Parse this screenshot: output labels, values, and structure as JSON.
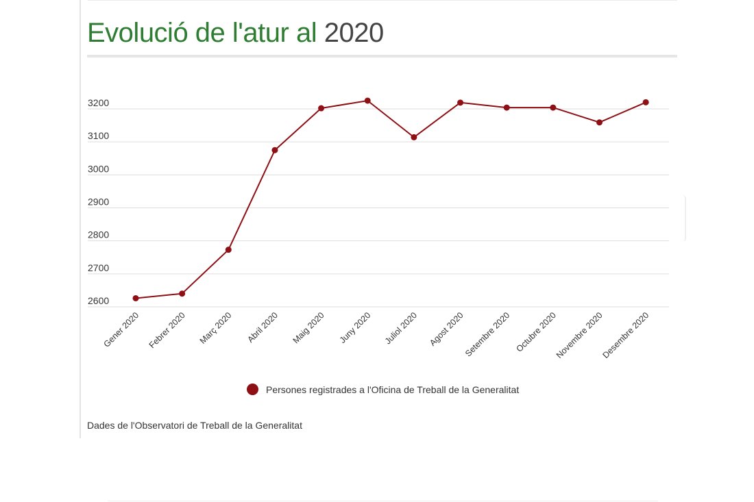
{
  "title": {
    "main": "Evolució de l'atur al",
    "year": "2020"
  },
  "source_note": "Dades de l'Observatori de Treball de la Generalitat",
  "colors": {
    "title_green": "#2e7d32",
    "title_gray": "#444444",
    "series": "#8e0f14",
    "grid": "#dddddd"
  },
  "chart_data": {
    "type": "line",
    "title": "Evolució de l'atur al 2020",
    "categories": [
      "Gener 2020",
      "Febrer 2020",
      "Març 2020",
      "Abril 2020",
      "Maig 2020",
      "Juny 2020",
      "Juliol 2020",
      "Agost 2020",
      "Setembre 2020",
      "Octubre 2020",
      "Novembre 2020",
      "Desembre 2020"
    ],
    "series": [
      {
        "name": "Persones registrades a l'Oficina de Treball de la Generalitat",
        "values": [
          2626,
          2640,
          2773,
          3075,
          3202,
          3225,
          3114,
          3219,
          3204,
          3204,
          3159,
          3220
        ]
      }
    ],
    "xlabel": "",
    "ylabel": "",
    "yticks": [
      2600,
      2700,
      2800,
      2900,
      3000,
      3100,
      3200
    ],
    "ylim": [
      2580,
      3320
    ],
    "grid": true,
    "legend_position": "bottom"
  }
}
